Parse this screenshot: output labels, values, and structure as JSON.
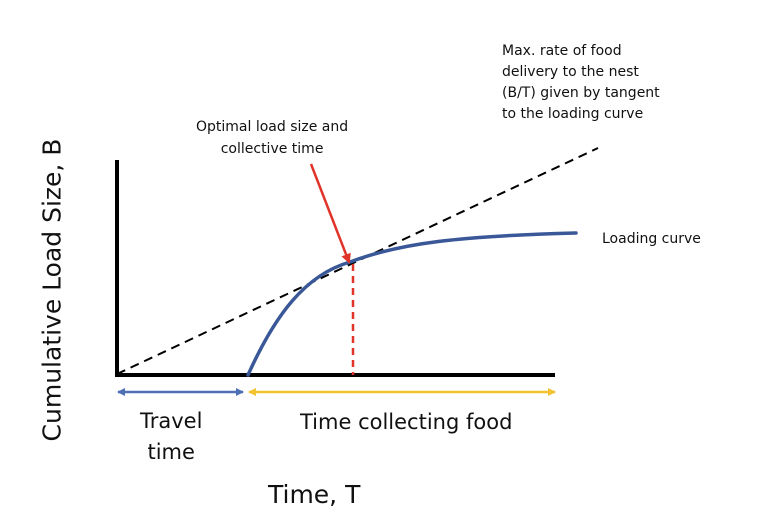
{
  "diagram": {
    "y_axis_label": "Cumulative Load Size, B",
    "x_axis_label": "Time, T",
    "annotation_tangent": "Max. rate of food\ndelivery to the nest\n(B/T) given by tangent\nto the loading curve",
    "annotation_optimal": "Optimal load size and\ncollective time",
    "curve_label": "Loading curve",
    "travel_label": "Travel\ntime",
    "collecting_label": "Time collecting food",
    "colors": {
      "axes": "#000000",
      "loading_curve": "#3a5898",
      "tangent_line": "#000000",
      "optimal_marker": "#e0342a",
      "travel_arrow": "#4d6fb3",
      "collecting_arrow": "#f2c230"
    }
  }
}
